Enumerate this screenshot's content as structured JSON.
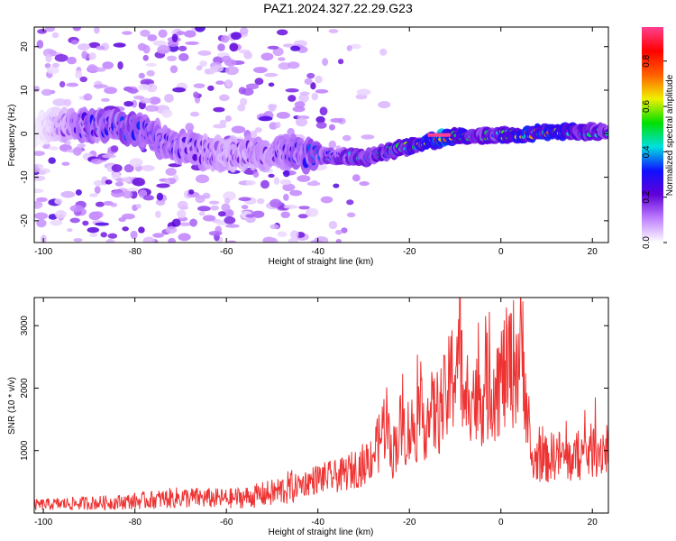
{
  "figure": {
    "title": "PAZ1.2024.327.22.29.G23"
  },
  "chart_data": [
    {
      "type": "heatmap",
      "title": "PAZ1.2024.327.22.29.G23",
      "xlabel": "Height of straight line (km)",
      "ylabel": "Frequency (Hz)",
      "xlim": [
        -102,
        23.5
      ],
      "ylim": [
        -25,
        24.5
      ],
      "xticks": [
        -100,
        -80,
        -60,
        -40,
        -20,
        0,
        20
      ],
      "yticks": [
        -20,
        -10,
        0,
        10,
        20
      ],
      "grid": false,
      "colorbar": {
        "label": "Normalized spectral amplitude",
        "range": [
          0,
          0.95
        ],
        "ticks": [
          "0.0",
          "0.2",
          "0.4",
          "0.6",
          "0.8"
        ],
        "colormap": [
          "#ffffff",
          "#c080ff",
          "#6000d8",
          "#1010ff",
          "#00e0e0",
          "#00e000",
          "#f0f000",
          "#ff6000",
          "#ff0000",
          "#ff4090"
        ]
      },
      "ridge": {
        "description_points_height_km": [
          -100,
          -90,
          -80,
          -70,
          -60,
          -50,
          -40,
          -30,
          -20,
          -12,
          -5,
          0,
          5,
          10,
          15,
          23
        ],
        "center_frequency_hz": [
          1.5,
          2,
          1,
          -3,
          -5,
          -4,
          -5,
          -5.5,
          -3,
          -0.8,
          -0.5,
          -0.3,
          -0.2,
          0.5,
          0.5,
          0.3
        ],
        "peak_amplitude": [
          0.05,
          0.35,
          0.4,
          0.3,
          0.2,
          0.25,
          0.4,
          0.5,
          0.6,
          0.95,
          0.55,
          0.6,
          0.75,
          0.8,
          0.65,
          0.5
        ]
      }
    },
    {
      "type": "line",
      "xlabel": "Height of straight line (km)",
      "ylabel": "SNR (10 * v/v)",
      "xlim": [
        -102,
        23.5
      ],
      "ylim": [
        0,
        3450
      ],
      "xticks": [
        -100,
        -80,
        -60,
        -40,
        -20,
        0,
        20
      ],
      "yticks": [
        1000,
        2000,
        3000
      ],
      "grid": false,
      "color": "#ee3333",
      "series": [
        {
          "x": [
            -102,
            -95,
            -90,
            -85,
            -80,
            -75,
            -70,
            -65,
            -60,
            -55,
            -50,
            -45,
            -40,
            -35,
            -30,
            -27,
            -25,
            -24,
            -22,
            -20,
            -18,
            -16,
            -14,
            -12,
            -10,
            -9,
            -8,
            -7,
            -6,
            -5,
            -4,
            -2,
            0,
            2,
            4,
            5,
            6,
            7,
            8,
            10,
            12,
            15,
            18,
            20,
            23
          ],
          "y": [
            130,
            150,
            160,
            170,
            190,
            220,
            250,
            240,
            230,
            260,
            320,
            430,
            550,
            600,
            780,
            1050,
            1550,
            900,
            1350,
            1300,
            1450,
            1550,
            1600,
            1800,
            2350,
            2900,
            1400,
            2150,
            1900,
            1750,
            1950,
            2050,
            2150,
            2350,
            2500,
            2600,
            1200,
            750,
            900,
            850,
            950,
            850,
            950,
            1000,
            1050
          ]
        }
      ]
    }
  ]
}
